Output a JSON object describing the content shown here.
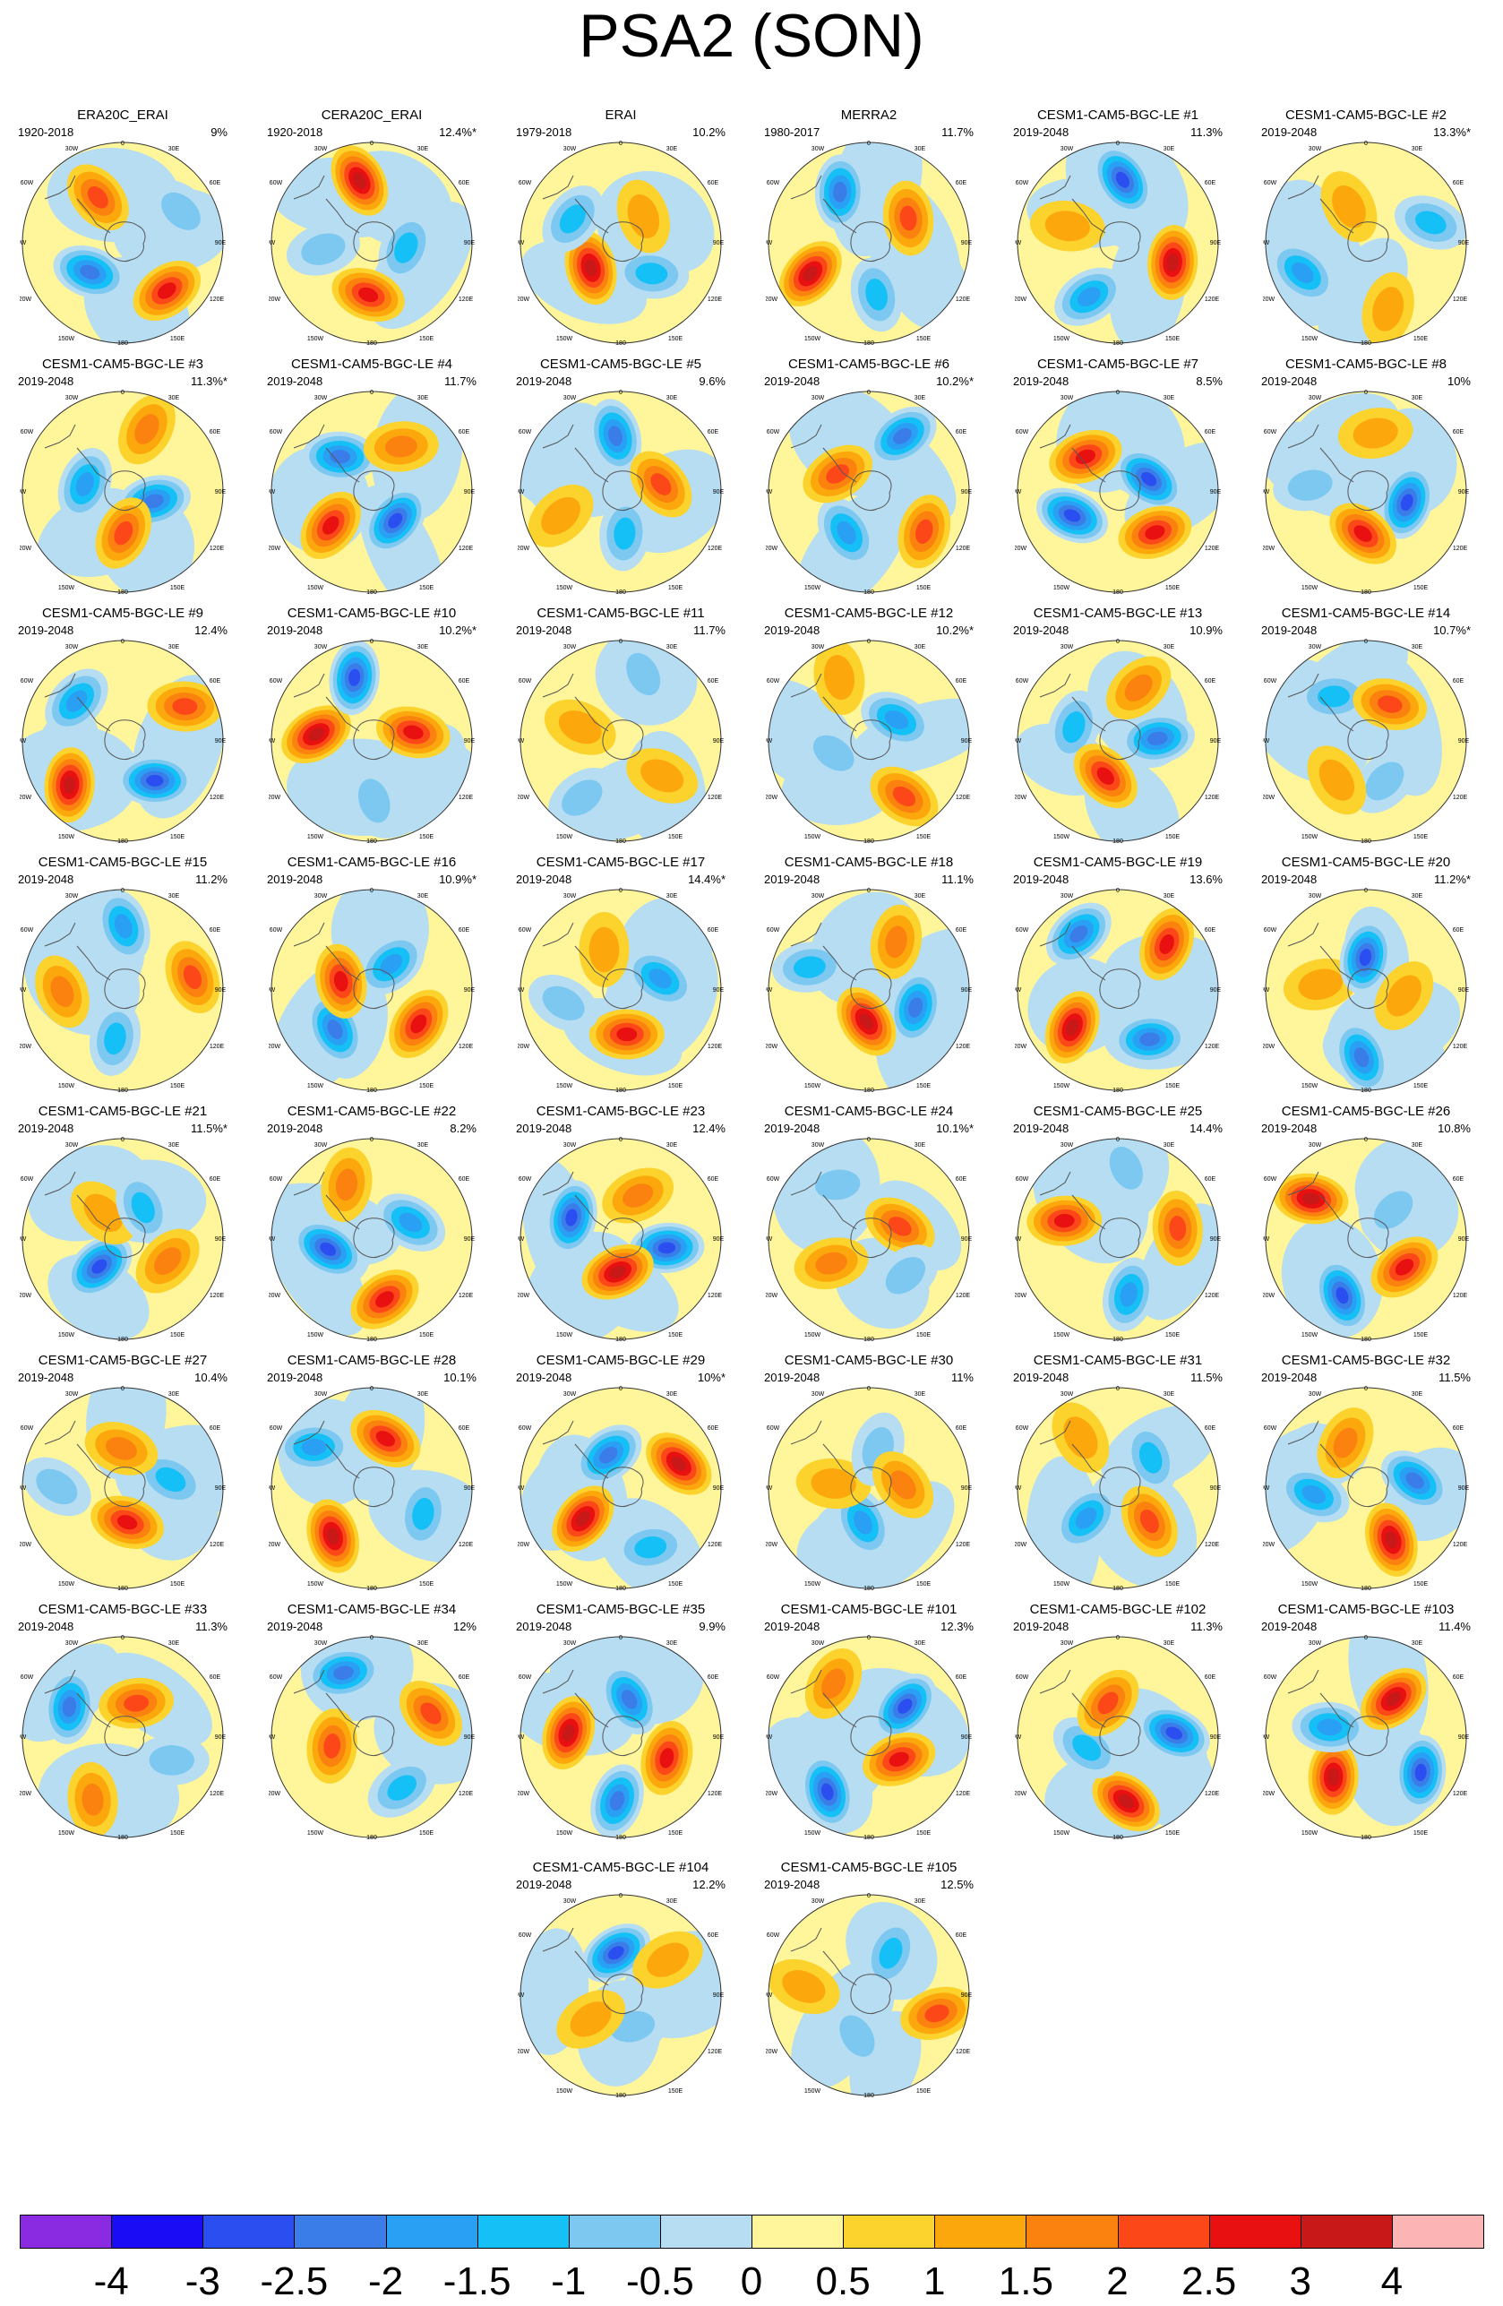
{
  "title": "PSA2 (SON)",
  "axis_labels": {
    "top": "0",
    "top_left": "30W",
    "top_right": "30E",
    "upper_left": "60W",
    "upper_right": "60E",
    "left": "90W",
    "right": "90E",
    "lower_left": "120W",
    "lower_right": "120E",
    "bottom_left": "150W",
    "bottom_right": "150E",
    "bottom": "180"
  },
  "panels": [
    {
      "name": "ERA20C_ERAI",
      "years": "1920-2018",
      "pct": "9%"
    },
    {
      "name": "CERA20C_ERAI",
      "years": "1920-2018",
      "pct": "12.4%*"
    },
    {
      "name": "ERAI",
      "years": "1979-2018",
      "pct": "10.2%"
    },
    {
      "name": "MERRA2",
      "years": "1980-2017",
      "pct": "11.7%"
    },
    {
      "name": "CESM1-CAM5-BGC-LE #1",
      "years": "2019-2048",
      "pct": "11.3%"
    },
    {
      "name": "CESM1-CAM5-BGC-LE #2",
      "years": "2019-2048",
      "pct": "13.3%*"
    },
    {
      "name": "CESM1-CAM5-BGC-LE #3",
      "years": "2019-2048",
      "pct": "11.3%*"
    },
    {
      "name": "CESM1-CAM5-BGC-LE #4",
      "years": "2019-2048",
      "pct": "11.7%"
    },
    {
      "name": "CESM1-CAM5-BGC-LE #5",
      "years": "2019-2048",
      "pct": "9.6%"
    },
    {
      "name": "CESM1-CAM5-BGC-LE #6",
      "years": "2019-2048",
      "pct": "10.2%*"
    },
    {
      "name": "CESM1-CAM5-BGC-LE #7",
      "years": "2019-2048",
      "pct": "8.5%"
    },
    {
      "name": "CESM1-CAM5-BGC-LE #8",
      "years": "2019-2048",
      "pct": "10%"
    },
    {
      "name": "CESM1-CAM5-BGC-LE #9",
      "years": "2019-2048",
      "pct": "12.4%"
    },
    {
      "name": "CESM1-CAM5-BGC-LE #10",
      "years": "2019-2048",
      "pct": "10.2%*"
    },
    {
      "name": "CESM1-CAM5-BGC-LE #11",
      "years": "2019-2048",
      "pct": "11.7%"
    },
    {
      "name": "CESM1-CAM5-BGC-LE #12",
      "years": "2019-2048",
      "pct": "10.2%*"
    },
    {
      "name": "CESM1-CAM5-BGC-LE #13",
      "years": "2019-2048",
      "pct": "10.9%"
    },
    {
      "name": "CESM1-CAM5-BGC-LE #14",
      "years": "2019-2048",
      "pct": "10.7%*"
    },
    {
      "name": "CESM1-CAM5-BGC-LE #15",
      "years": "2019-2048",
      "pct": "11.2%"
    },
    {
      "name": "CESM1-CAM5-BGC-LE #16",
      "years": "2019-2048",
      "pct": "10.9%*"
    },
    {
      "name": "CESM1-CAM5-BGC-LE #17",
      "years": "2019-2048",
      "pct": "14.4%*"
    },
    {
      "name": "CESM1-CAM5-BGC-LE #18",
      "years": "2019-2048",
      "pct": "11.1%"
    },
    {
      "name": "CESM1-CAM5-BGC-LE #19",
      "years": "2019-2048",
      "pct": "13.6%"
    },
    {
      "name": "CESM1-CAM5-BGC-LE #20",
      "years": "2019-2048",
      "pct": "11.2%*"
    },
    {
      "name": "CESM1-CAM5-BGC-LE #21",
      "years": "2019-2048",
      "pct": "11.5%*"
    },
    {
      "name": "CESM1-CAM5-BGC-LE #22",
      "years": "2019-2048",
      "pct": "8.2%"
    },
    {
      "name": "CESM1-CAM5-BGC-LE #23",
      "years": "2019-2048",
      "pct": "12.4%"
    },
    {
      "name": "CESM1-CAM5-BGC-LE #24",
      "years": "2019-2048",
      "pct": "10.1%*"
    },
    {
      "name": "CESM1-CAM5-BGC-LE #25",
      "years": "2019-2048",
      "pct": "14.4%"
    },
    {
      "name": "CESM1-CAM5-BGC-LE #26",
      "years": "2019-2048",
      "pct": "10.8%"
    },
    {
      "name": "CESM1-CAM5-BGC-LE #27",
      "years": "2019-2048",
      "pct": "10.4%"
    },
    {
      "name": "CESM1-CAM5-BGC-LE #28",
      "years": "2019-2048",
      "pct": "10.1%"
    },
    {
      "name": "CESM1-CAM5-BGC-LE #29",
      "years": "2019-2048",
      "pct": "10%*"
    },
    {
      "name": "CESM1-CAM5-BGC-LE #30",
      "years": "2019-2048",
      "pct": "11%"
    },
    {
      "name": "CESM1-CAM5-BGC-LE #31",
      "years": "2019-2048",
      "pct": "11.5%"
    },
    {
      "name": "CESM1-CAM5-BGC-LE #32",
      "years": "2019-2048",
      "pct": "11.5%"
    },
    {
      "name": "CESM1-CAM5-BGC-LE #33",
      "years": "2019-2048",
      "pct": "11.3%"
    },
    {
      "name": "CESM1-CAM5-BGC-LE #34",
      "years": "2019-2048",
      "pct": "12%"
    },
    {
      "name": "CESM1-CAM5-BGC-LE #35",
      "years": "2019-2048",
      "pct": "9.9%"
    },
    {
      "name": "CESM1-CAM5-BGC-LE #101",
      "years": "2019-2048",
      "pct": "12.3%"
    },
    {
      "name": "CESM1-CAM5-BGC-LE #102",
      "years": "2019-2048",
      "pct": "11.3%"
    },
    {
      "name": "CESM1-CAM5-BGC-LE #103",
      "years": "2019-2048",
      "pct": "11.4%"
    },
    {
      "name": "CESM1-CAM5-BGC-LE #104",
      "years": "2019-2048",
      "pct": "12.2%"
    },
    {
      "name": "CESM1-CAM5-BGC-LE #105",
      "years": "2019-2048",
      "pct": "12.5%"
    }
  ],
  "colorbar": {
    "labels": [
      "-4",
      "-3",
      "-2.5",
      "-2",
      "-1.5",
      "-1",
      "-0.5",
      "0",
      "0.5",
      "1",
      "1.5",
      "2",
      "2.5",
      "3",
      "4"
    ],
    "colors": [
      "#8a2be2",
      "#1a0df5",
      "#2a4ef0",
      "#3a7de8",
      "#2aa0f5",
      "#14c0f5",
      "#7cc8f0",
      "#b6ddf2",
      "#fff59a",
      "#fcd22c",
      "#fca80c",
      "#fc8210",
      "#fc4818",
      "#e81010",
      "#c81818",
      "#fcb4b4"
    ]
  }
}
